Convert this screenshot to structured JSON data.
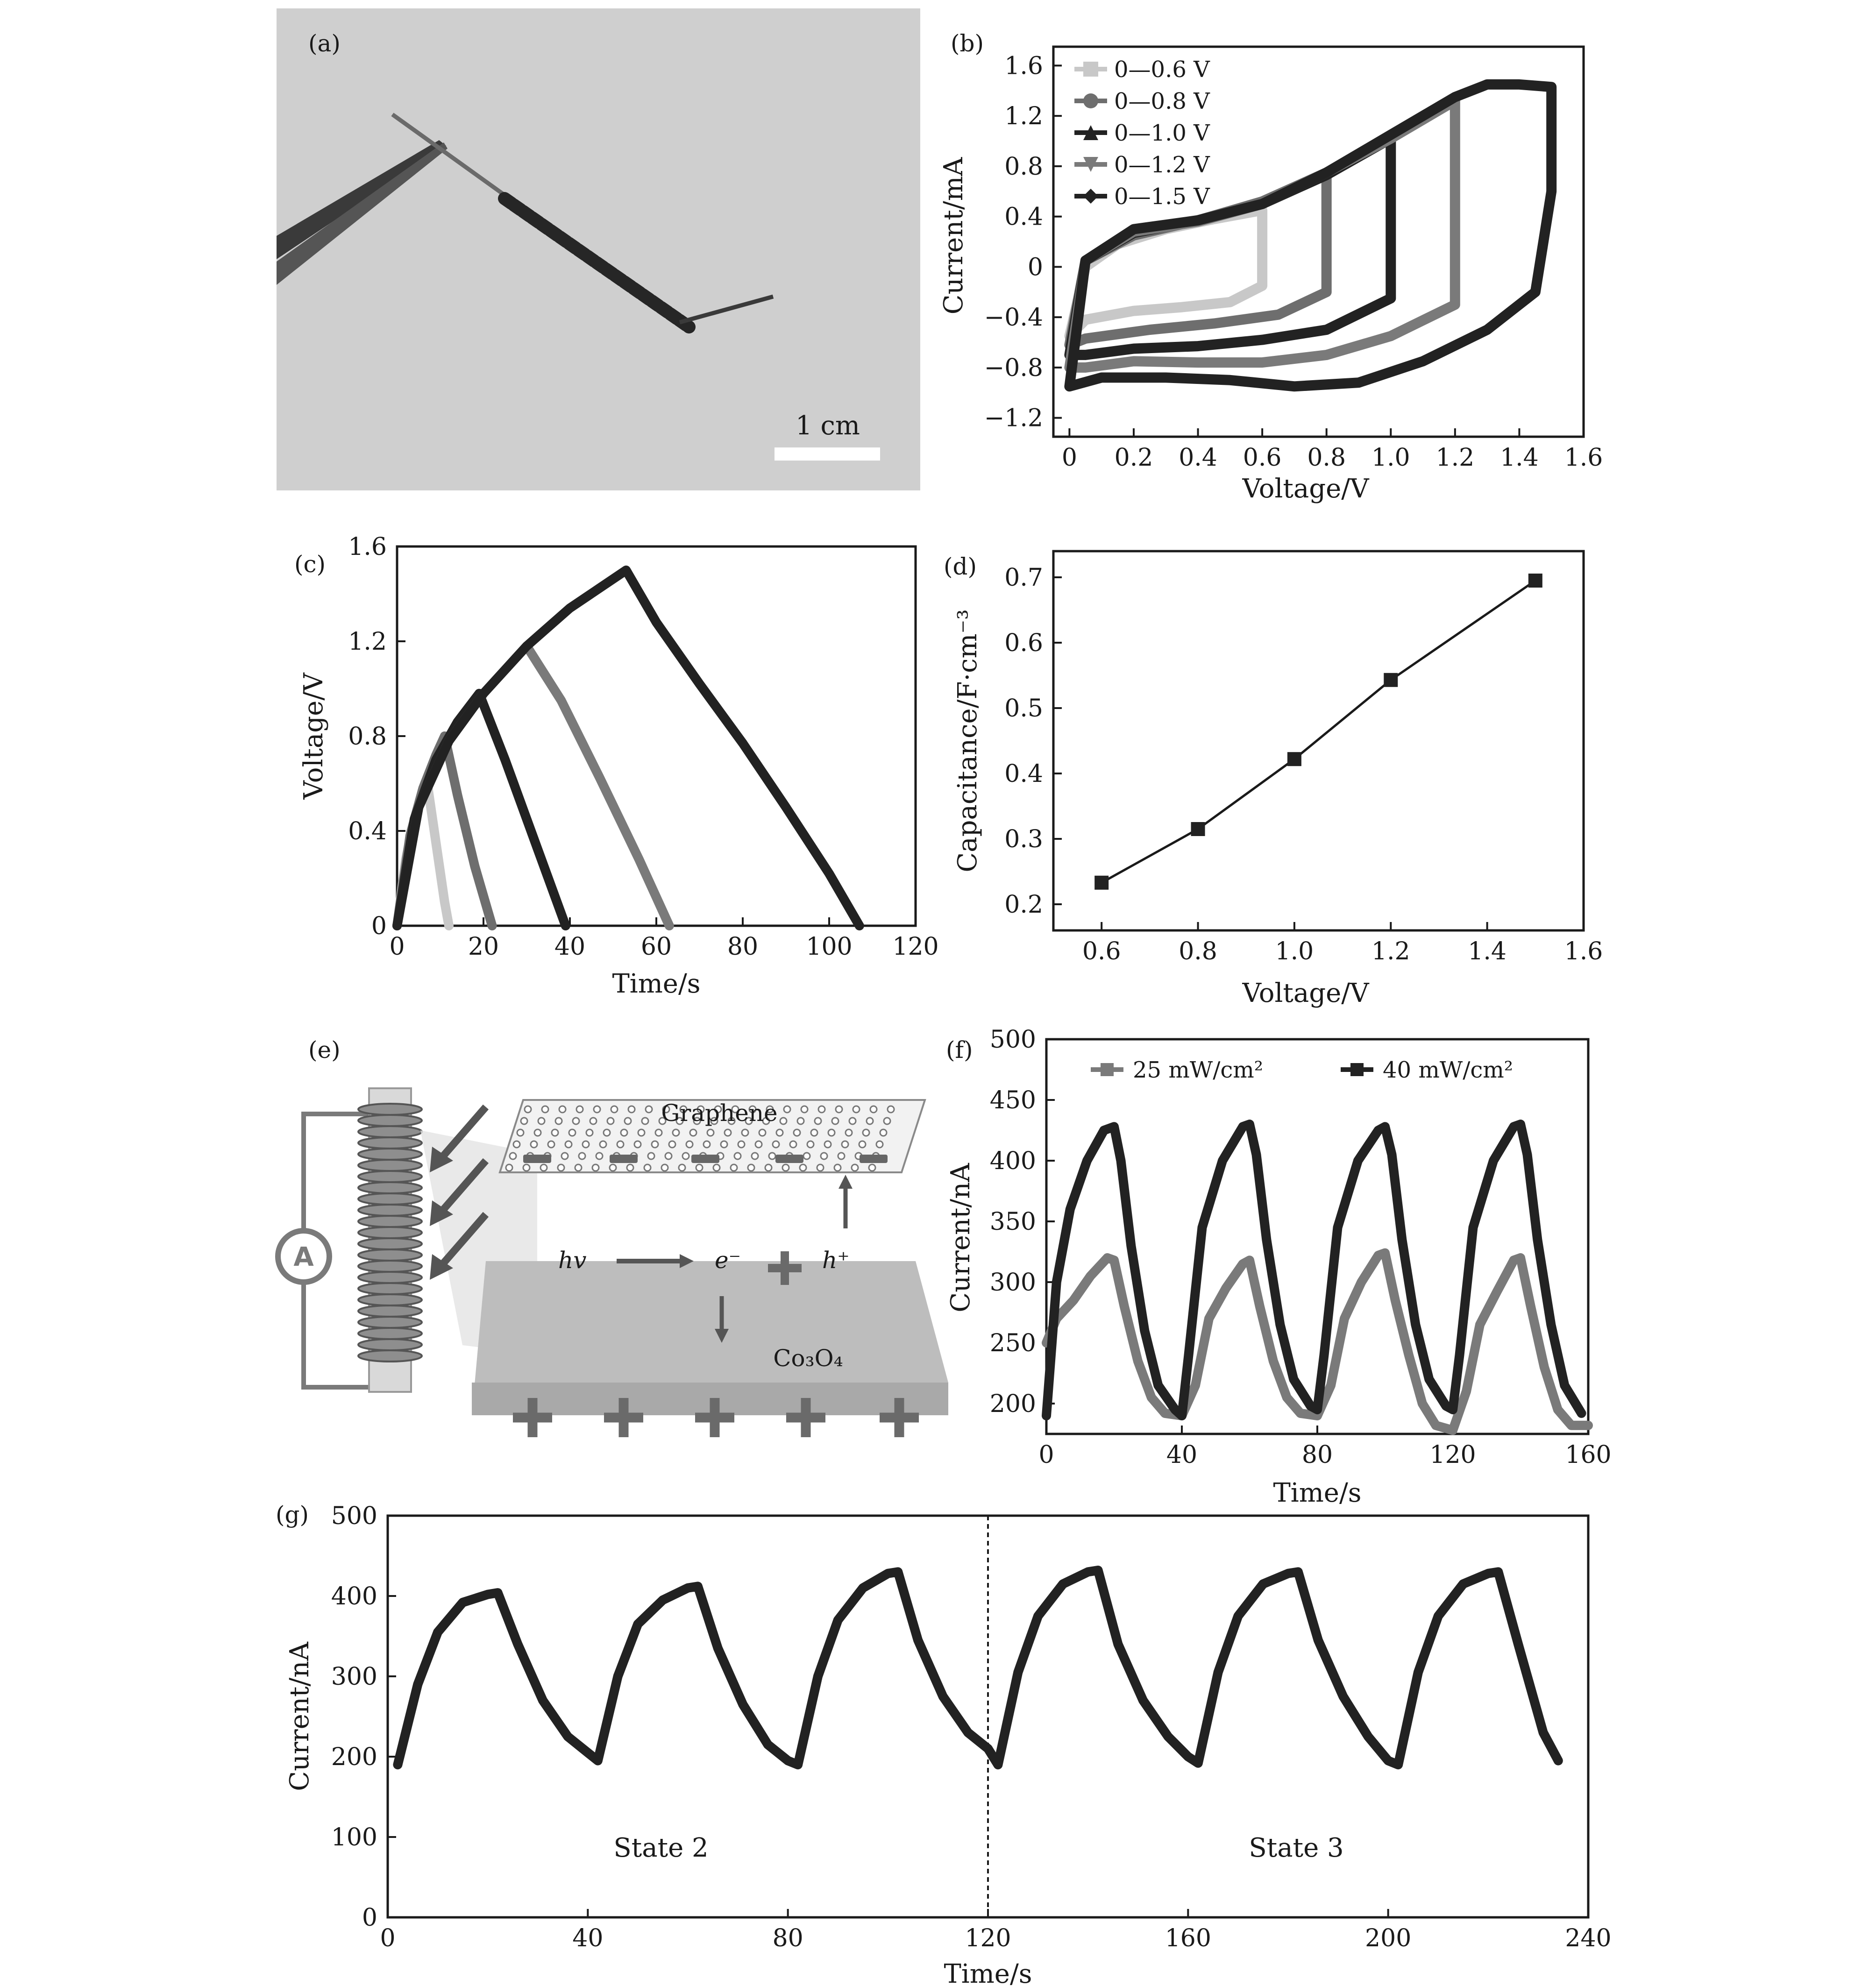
{
  "panel_a": {
    "label": "(a)",
    "scale_bar_text": "1 cm"
  },
  "panel_e": {
    "label": "(e)",
    "graphene_label": "Graphene",
    "hv_label": "hv",
    "electron_label": "e⁻",
    "hole_label": "h⁺",
    "co3o4_label": "Co₃O₄",
    "ammeter_label": "A"
  },
  "colors": {
    "black_series": "#222222",
    "gray_series": "#7a7a7a",
    "light_series": "#c8c8c8",
    "mid_series": "#666666"
  },
  "chart_data": [
    {
      "panel": "(b)",
      "type": "line",
      "xlabel": "Voltage/V",
      "ylabel": "Current/mA",
      "xlim": [
        -0.05,
        1.6
      ],
      "ylim": [
        -1.35,
        1.75
      ],
      "xticks": [
        "0",
        "0.2",
        "0.4",
        "0.6",
        "0.8",
        "1.0",
        "1.2",
        "1.4",
        "1.6"
      ],
      "yticks": [
        "−1.2",
        "−0.8",
        "−0.4",
        "0",
        "0.4",
        "0.8",
        "1.2",
        "1.6"
      ],
      "legend_position": "top-left",
      "series": [
        {
          "name": "0—0.6 V",
          "color": "#c8c8c8",
          "marker": "square",
          "x": [
            0,
            0.05,
            0.15,
            0.3,
            0.45,
            0.6,
            0.6,
            0.5,
            0.35,
            0.2,
            0.05,
            0
          ],
          "y": [
            -0.55,
            0.0,
            0.18,
            0.3,
            0.38,
            0.45,
            -0.15,
            -0.28,
            -0.32,
            -0.35,
            -0.42,
            -0.55
          ]
        },
        {
          "name": "0—0.8 V",
          "color": "#6e6e6e",
          "marker": "circle",
          "x": [
            0,
            0.05,
            0.2,
            0.4,
            0.6,
            0.8,
            0.8,
            0.65,
            0.45,
            0.25,
            0.05,
            0
          ],
          "y": [
            -0.62,
            0.05,
            0.25,
            0.37,
            0.52,
            0.75,
            -0.2,
            -0.38,
            -0.45,
            -0.5,
            -0.57,
            -0.62
          ]
        },
        {
          "name": "0—1.0 V",
          "color": "#222222",
          "marker": "triangle-up",
          "x": [
            0,
            0.05,
            0.2,
            0.4,
            0.6,
            0.8,
            1.0,
            1.0,
            0.8,
            0.6,
            0.4,
            0.2,
            0.05,
            0
          ],
          "y": [
            -0.7,
            0.05,
            0.27,
            0.37,
            0.5,
            0.73,
            1.02,
            -0.25,
            -0.5,
            -0.58,
            -0.63,
            -0.65,
            -0.7,
            -0.7
          ]
        },
        {
          "name": "0—1.2 V",
          "color": "#7a7a7a",
          "marker": "triangle-down",
          "x": [
            0,
            0.05,
            0.2,
            0.4,
            0.6,
            0.8,
            1.0,
            1.2,
            1.2,
            1.0,
            0.8,
            0.6,
            0.4,
            0.2,
            0.05,
            0
          ],
          "y": [
            -0.8,
            0.05,
            0.28,
            0.36,
            0.5,
            0.75,
            1.02,
            1.32,
            -0.3,
            -0.55,
            -0.7,
            -0.76,
            -0.76,
            -0.75,
            -0.8,
            -0.8
          ]
        },
        {
          "name": "0—1.5 V",
          "color": "#222222",
          "marker": "diamond",
          "x": [
            0,
            0.05,
            0.2,
            0.4,
            0.6,
            0.8,
            1.0,
            1.2,
            1.3,
            1.4,
            1.5,
            1.5,
            1.45,
            1.3,
            1.1,
            0.9,
            0.7,
            0.5,
            0.3,
            0.1,
            0
          ],
          "y": [
            -0.95,
            0.05,
            0.3,
            0.37,
            0.5,
            0.75,
            1.05,
            1.35,
            1.45,
            1.45,
            1.43,
            0.6,
            -0.2,
            -0.5,
            -0.75,
            -0.92,
            -0.95,
            -0.9,
            -0.88,
            -0.88,
            -0.95
          ]
        }
      ]
    },
    {
      "panel": "(c)",
      "type": "line",
      "xlabel": "Time/s",
      "ylabel": "Voltage/V",
      "xlim": [
        0,
        120
      ],
      "ylim": [
        0,
        1.6
      ],
      "xticks": [
        "0",
        "20",
        "40",
        "60",
        "80",
        "100",
        "120"
      ],
      "yticks": [
        "0",
        "0.4",
        "0.8",
        "1.2",
        "1.6"
      ],
      "series": [
        {
          "color": "#c8c8c8",
          "x": [
            0,
            2,
            4,
            6,
            7,
            9,
            11,
            12
          ],
          "y": [
            0,
            0.28,
            0.45,
            0.58,
            0.6,
            0.35,
            0.1,
            0
          ]
        },
        {
          "color": "#6e6e6e",
          "x": [
            0,
            3,
            6,
            9,
            11,
            14,
            18,
            22
          ],
          "y": [
            0,
            0.38,
            0.58,
            0.72,
            0.8,
            0.55,
            0.25,
            0
          ]
        },
        {
          "color": "#222222",
          "x": [
            0,
            4,
            9,
            14,
            19,
            25,
            32,
            39
          ],
          "y": [
            0,
            0.45,
            0.7,
            0.86,
            0.98,
            0.7,
            0.35,
            0
          ]
        },
        {
          "color": "#7a7a7a",
          "x": [
            0,
            5,
            12,
            20,
            30,
            38,
            47,
            56,
            63
          ],
          "y": [
            0,
            0.5,
            0.78,
            0.98,
            1.18,
            0.95,
            0.62,
            0.28,
            0
          ]
        },
        {
          "color": "#222222",
          "x": [
            0,
            5,
            12,
            20,
            30,
            40,
            53,
            60,
            70,
            80,
            90,
            100,
            107
          ],
          "y": [
            0,
            0.5,
            0.78,
            0.98,
            1.18,
            1.34,
            1.5,
            1.28,
            1.02,
            0.77,
            0.5,
            0.22,
            0
          ]
        }
      ]
    },
    {
      "panel": "(d)",
      "type": "line",
      "xlabel": "Voltage/V",
      "ylabel": "Capacitance/F·cm⁻³",
      "xlim": [
        0.5,
        1.6
      ],
      "ylim": [
        0.16,
        0.74
      ],
      "xticks": [
        "0.6",
        "0.8",
        "1.0",
        "1.2",
        "1.4",
        "1.6"
      ],
      "yticks": [
        "0.2",
        "0.3",
        "0.4",
        "0.5",
        "0.6",
        "0.7"
      ],
      "x": [
        0.6,
        0.8,
        1.0,
        1.2,
        1.5
      ],
      "y": [
        0.233,
        0.315,
        0.422,
        0.543,
        0.695
      ]
    },
    {
      "panel": "(f)",
      "type": "line",
      "xlabel": "Time/s",
      "ylabel": "Current/nA",
      "xlim": [
        0,
        160
      ],
      "ylim": [
        175,
        500
      ],
      "xticks": [
        "0",
        "40",
        "80",
        "120",
        "160"
      ],
      "yticks": [
        "200",
        "250",
        "300",
        "350",
        "400",
        "450",
        "500"
      ],
      "legend_position": "top",
      "series": [
        {
          "name": "25 mW/cm²",
          "color": "#7a7a7a",
          "marker": "square",
          "x": [
            0,
            3,
            8,
            13,
            18,
            20,
            23,
            27,
            31,
            35,
            40,
            44,
            48,
            53,
            58,
            60,
            63,
            67,
            71,
            75,
            80,
            84,
            88,
            93,
            98,
            100,
            103,
            107,
            111,
            115,
            120,
            124,
            128,
            133,
            138,
            140,
            143,
            147,
            151,
            155,
            160
          ],
          "y": [
            250,
            270,
            285,
            305,
            320,
            318,
            280,
            235,
            205,
            192,
            190,
            215,
            270,
            295,
            315,
            318,
            280,
            235,
            205,
            192,
            190,
            215,
            270,
            300,
            322,
            324,
            285,
            240,
            200,
            182,
            178,
            210,
            265,
            292,
            318,
            320,
            280,
            230,
            195,
            182,
            182
          ]
        },
        {
          "name": "40 mW/cm²",
          "color": "#222222",
          "marker": "square",
          "x": [
            0,
            3,
            7,
            12,
            17,
            20,
            22,
            25,
            29,
            33,
            38,
            40,
            42,
            46,
            52,
            58,
            60,
            62,
            65,
            69,
            73,
            78,
            80,
            82,
            86,
            92,
            98,
            100,
            102,
            105,
            109,
            113,
            118,
            120,
            122,
            126,
            132,
            138,
            140,
            142,
            145,
            149,
            153,
            158
          ],
          "y": [
            190,
            300,
            360,
            400,
            425,
            428,
            400,
            330,
            260,
            215,
            195,
            190,
            240,
            345,
            400,
            428,
            430,
            405,
            335,
            265,
            220,
            198,
            195,
            240,
            345,
            400,
            425,
            428,
            405,
            335,
            265,
            220,
            198,
            195,
            240,
            345,
            400,
            428,
            430,
            405,
            335,
            265,
            215,
            192
          ]
        }
      ]
    },
    {
      "panel": "(g)",
      "type": "line",
      "xlabel": "Time/s",
      "ylabel": "Current/nA",
      "xlim": [
        0,
        240
      ],
      "ylim": [
        0,
        500
      ],
      "xticks": [
        "0",
        "40",
        "80",
        "120",
        "160",
        "200",
        "240"
      ],
      "yticks": [
        "0",
        "100",
        "200",
        "300",
        "400",
        "500"
      ],
      "divider_x": 120,
      "annotations": [
        "State 2",
        "State 3"
      ],
      "series": [
        {
          "color": "#222222",
          "x": [
            2,
            6,
            10,
            15,
            20,
            22,
            26,
            31,
            36,
            40,
            42,
            46,
            50,
            55,
            60,
            62,
            66,
            71,
            76,
            80,
            82,
            86,
            90,
            95,
            100,
            102,
            106,
            111,
            116,
            120,
            122,
            126,
            130,
            135,
            140,
            142,
            146,
            151,
            156,
            160,
            162,
            166,
            170,
            175,
            180,
            182,
            186,
            191,
            196,
            200,
            202,
            206,
            210,
            215,
            220,
            222,
            226,
            231,
            234
          ],
          "y": [
            190,
            290,
            355,
            392,
            402,
            404,
            340,
            270,
            225,
            205,
            195,
            300,
            365,
            395,
            410,
            412,
            335,
            265,
            215,
            195,
            190,
            300,
            370,
            410,
            428,
            430,
            345,
            275,
            230,
            210,
            190,
            305,
            375,
            415,
            430,
            432,
            340,
            270,
            225,
            200,
            192,
            305,
            375,
            415,
            428,
            430,
            345,
            275,
            225,
            195,
            190,
            305,
            375,
            415,
            428,
            430,
            340,
            230,
            195
          ]
        }
      ]
    }
  ]
}
